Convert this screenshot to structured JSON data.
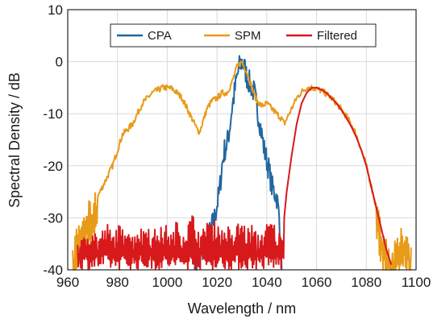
{
  "chart_data": {
    "type": "line",
    "xlabel": "Wavelength / nm",
    "ylabel": "Spectral Density / dB",
    "xlim": [
      960,
      1100
    ],
    "ylim": [
      -40,
      10
    ],
    "xticks": [
      960,
      980,
      1000,
      1020,
      1040,
      1060,
      1080,
      1100
    ],
    "yticks": [
      -40,
      -30,
      -20,
      -10,
      0,
      10
    ],
    "grid": true,
    "legend": {
      "placement": "top-center",
      "orientation": "horizontal"
    },
    "series": [
      {
        "name": "CPA",
        "color": "#2166a0",
        "x": [
          1011,
          1013,
          1015,
          1017,
          1019,
          1021,
          1022,
          1023,
          1024,
          1025,
          1026,
          1027,
          1028,
          1029,
          1030,
          1031,
          1032,
          1033,
          1034,
          1035,
          1036,
          1037,
          1038,
          1039,
          1040,
          1041,
          1042,
          1043,
          1044,
          1045,
          1046
        ],
        "y": [
          -40,
          -38,
          -36,
          -33,
          -30,
          -25,
          -20,
          -17,
          -16,
          -13,
          -9,
          -6,
          -3,
          -1,
          0,
          -1,
          -3,
          -4,
          -5,
          -6,
          -9,
          -11,
          -14,
          -17,
          -19,
          -21,
          -24,
          -25,
          -26,
          -30,
          -40
        ]
      },
      {
        "name": "SPM",
        "color": "#e89b19",
        "x": [
          962,
          964,
          966,
          968,
          970,
          972,
          974,
          976,
          978,
          980,
          982,
          984,
          986,
          988,
          990,
          992,
          994,
          996,
          998,
          1000,
          1002,
          1004,
          1006,
          1008,
          1010,
          1012,
          1013,
          1014,
          1016,
          1018,
          1020,
          1022,
          1024,
          1026,
          1028,
          1030,
          1032,
          1034,
          1036,
          1038,
          1040,
          1042,
          1044,
          1046,
          1047,
          1048,
          1050,
          1052,
          1054,
          1056,
          1058,
          1060,
          1062,
          1064,
          1066,
          1068,
          1070,
          1072,
          1074,
          1076,
          1078,
          1080,
          1082,
          1084,
          1086,
          1088,
          1090,
          1092,
          1094,
          1096,
          1098
        ],
        "y": [
          -37,
          -33,
          -31,
          -29,
          -28,
          -26,
          -24,
          -22,
          -20,
          -17,
          -14,
          -13,
          -12,
          -10,
          -8,
          -7,
          -6,
          -5.5,
          -5,
          -5,
          -5.2,
          -6,
          -7,
          -9,
          -11,
          -13,
          -13.5,
          -12,
          -9,
          -7.5,
          -7,
          -6,
          -6,
          -4,
          -1,
          0,
          -2,
          -5,
          -7.5,
          -8.5,
          -8,
          -9,
          -10,
          -11,
          -12,
          -11,
          -9,
          -7,
          -5.8,
          -5,
          -5,
          -5.2,
          -5.6,
          -6.2,
          -7,
          -8,
          -9.2,
          -10.5,
          -12,
          -14,
          -17,
          -20,
          -24,
          -28,
          -32,
          -35,
          -38,
          -36,
          -34,
          -33,
          -37
        ]
      },
      {
        "name": "Filtered",
        "color": "#d7191c",
        "x": [
          964,
          966,
          968,
          970,
          972,
          974,
          976,
          978,
          980,
          982,
          984,
          986,
          988,
          990,
          992,
          994,
          996,
          998,
          1000,
          1002,
          1004,
          1006,
          1008,
          1010,
          1012,
          1014,
          1016,
          1018,
          1020,
          1022,
          1024,
          1026,
          1028,
          1030,
          1032,
          1034,
          1036,
          1038,
          1040,
          1042,
          1044,
          1046,
          1047,
          1048,
          1050,
          1052,
          1054,
          1056,
          1058,
          1060,
          1062,
          1064,
          1066,
          1068,
          1070,
          1072,
          1074,
          1076,
          1078,
          1080,
          1082,
          1084,
          1086,
          1088,
          1090
        ],
        "y": [
          -35,
          -36,
          -34,
          -33,
          -35,
          -34,
          -33,
          -35,
          -33,
          -34,
          -32,
          -35,
          -33,
          -34,
          -32,
          -35,
          -33,
          -34,
          -33,
          -35,
          -32,
          -34,
          -33,
          -31,
          -33,
          -35,
          -31,
          -33,
          -32,
          -34,
          -33,
          -35,
          -33,
          -32,
          -34,
          -33,
          -35,
          -34,
          -33,
          -32,
          -34,
          -35,
          -30,
          -25,
          -18,
          -12,
          -8,
          -6,
          -5,
          -5,
          -5.4,
          -6,
          -7,
          -8,
          -9.3,
          -10.8,
          -12.5,
          -14.5,
          -17,
          -20,
          -24,
          -28,
          -32,
          -36,
          -39
        ]
      }
    ]
  }
}
